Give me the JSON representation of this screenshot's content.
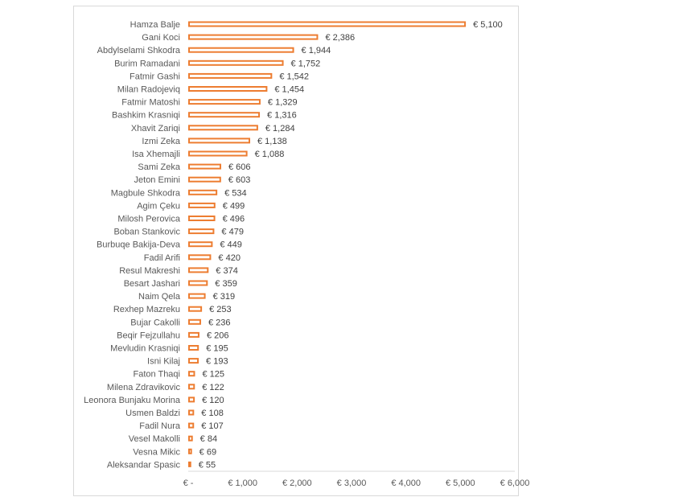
{
  "chart_data": {
    "type": "bar",
    "orientation": "horizontal",
    "categories": [
      "Hamza Balje",
      "Gani Koci",
      "Abdylselami Shkodra",
      "Burim Ramadani",
      "Fatmir Gashi",
      "Milan Radojeviq",
      "Fatmir Matoshi",
      "Bashkim Krasniqi",
      "Xhavit Zariqi",
      "Izmi Zeka",
      "Isa Xhemajli",
      "Sami Zeka",
      "Jeton Emini",
      "Magbule Shkodra",
      "Agim Çeku",
      "Milosh Perovica",
      "Boban Stankovic",
      "Burbuqe Bakija-Deva",
      "Fadil Arifi",
      "Resul Makreshi",
      "Besart Jashari",
      "Naim Qela",
      "Rexhep Mazreku",
      "Bujar Cakolli",
      "Beqir Fejzullahu",
      "Mevludin Krasniqi",
      "Isni Kilaj",
      "Faton Thaqi",
      "Milena Zdravikovic",
      "Leonora Bunjaku Morina",
      "Usmen Baldzi",
      "Fadil Nura",
      "Vesel Makolli",
      "Vesna Mikic",
      "Aleksandar Spasic"
    ],
    "values": [
      5100,
      2386,
      1944,
      1752,
      1542,
      1454,
      1329,
      1316,
      1284,
      1138,
      1088,
      606,
      603,
      534,
      499,
      496,
      479,
      449,
      420,
      374,
      359,
      319,
      253,
      236,
      206,
      195,
      193,
      125,
      122,
      120,
      108,
      107,
      84,
      69,
      55
    ],
    "value_labels": [
      "€ 5,100",
      "€ 2,386",
      "€ 1,944",
      "€ 1,752",
      "€ 1,542",
      "€ 1,454",
      "€ 1,329",
      "€ 1,316",
      "€ 1,284",
      "€ 1,138",
      "€ 1,088",
      "€ 606",
      "€ 603",
      "€ 534",
      "€ 499",
      "€ 496",
      "€ 479",
      "€ 449",
      "€ 420",
      "€ 374",
      "€ 359",
      "€ 319",
      "€ 253",
      "€ 236",
      "€ 206",
      "€ 195",
      "€ 193",
      "€ 125",
      "€ 122",
      "€ 120",
      "€ 108",
      "€ 107",
      "€ 84",
      "€ 69",
      "€ 55"
    ],
    "xlim": [
      0,
      6000
    ],
    "x_ticks": [
      0,
      1000,
      2000,
      3000,
      4000,
      5000,
      6000
    ],
    "x_tick_labels": [
      "€ -",
      "€ 1,000",
      "€ 2,000",
      "€ 3,000",
      "€ 4,000",
      "€ 5,000",
      "€ 6,000"
    ],
    "title": "",
    "xlabel": "",
    "ylabel": "",
    "grid": false,
    "legend": "none",
    "bar_color": "#ED7D31",
    "bar_fill": "#ffffff"
  }
}
